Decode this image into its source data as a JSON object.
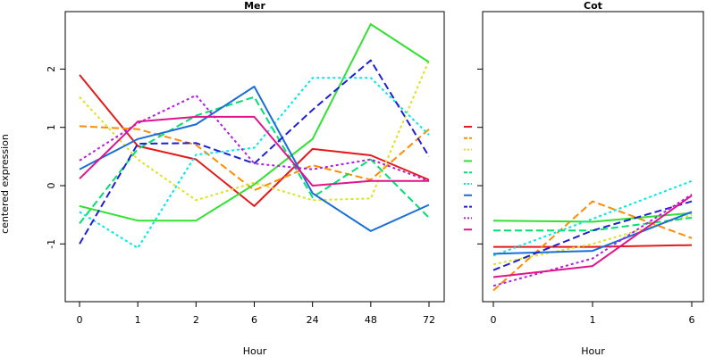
{
  "chart_data": [
    {
      "type": "line",
      "title": "Mer",
      "xlabel": "Hour",
      "ylabel": "centered expression",
      "categories": [
        "0",
        "1",
        "2",
        "6",
        "24",
        "48",
        "72"
      ],
      "yticks": [
        "-1",
        "0",
        "1",
        "2"
      ],
      "ylim": [
        -2,
        3
      ],
      "grid": false,
      "series": [
        {
          "color": "#e41a1c",
          "dash": "solid",
          "values": [
            1.9,
            0.68,
            0.45,
            -0.35,
            0.63,
            0.52,
            0.1
          ]
        },
        {
          "color": "#ff8c00",
          "dash": "dashed",
          "values": [
            1.02,
            0.97,
            0.7,
            -0.08,
            0.35,
            0.1,
            0.97
          ]
        },
        {
          "color": "#e0e020",
          "dash": "dotted",
          "values": [
            1.52,
            0.45,
            -0.25,
            0.05,
            -0.25,
            -0.22,
            2.15
          ]
        },
        {
          "color": "#33e033",
          "dash": "solid",
          "values": [
            -0.35,
            -0.6,
            -0.6,
            0.02,
            0.8,
            2.77,
            2.12
          ]
        },
        {
          "color": "#00e070",
          "dash": "dashed",
          "values": [
            -0.65,
            0.63,
            1.2,
            1.52,
            -0.2,
            0.45,
            -0.55
          ]
        },
        {
          "color": "#00e8e8",
          "dash": "dotted",
          "values": [
            -0.45,
            -1.07,
            0.53,
            0.65,
            1.85,
            1.85,
            0.87
          ]
        },
        {
          "color": "#1a6ed8",
          "dash": "solid",
          "values": [
            0.28,
            0.8,
            1.05,
            1.7,
            -0.13,
            -0.78,
            -0.33
          ]
        },
        {
          "color": "#2020d0",
          "dash": "dashed",
          "values": [
            -1.0,
            0.72,
            0.73,
            0.38,
            1.3,
            2.15,
            0.5
          ]
        },
        {
          "color": "#b020e0",
          "dash": "dotted",
          "values": [
            0.43,
            1.07,
            1.55,
            0.38,
            0.28,
            0.45,
            0.08
          ]
        },
        {
          "color": "#e0148c",
          "dash": "solid",
          "values": [
            0.12,
            1.1,
            1.18,
            1.18,
            0.0,
            0.08,
            0.08
          ]
        }
      ]
    },
    {
      "type": "line",
      "title": "Cot",
      "xlabel": "Hour",
      "ylabel": "",
      "categories": [
        "0",
        "1",
        "6"
      ],
      "ylim": [
        -2,
        3
      ],
      "grid": false,
      "series": [
        {
          "color": "#e41a1c",
          "dash": "solid",
          "values": [
            -1.05,
            -1.05,
            -1.02
          ]
        },
        {
          "color": "#ff8c00",
          "dash": "dashed",
          "values": [
            -1.8,
            -0.27,
            -0.9
          ]
        },
        {
          "color": "#e0e020",
          "dash": "dotted",
          "values": [
            -1.35,
            -1.0,
            -0.5
          ]
        },
        {
          "color": "#33e033",
          "dash": "solid",
          "values": [
            -0.6,
            -0.62,
            -0.47
          ]
        },
        {
          "color": "#00e070",
          "dash": "dashed",
          "values": [
            -0.77,
            -0.77,
            -0.55
          ]
        },
        {
          "color": "#00e8e8",
          "dash": "dotted",
          "values": [
            -1.2,
            -0.57,
            0.08
          ]
        },
        {
          "color": "#1a6ed8",
          "dash": "solid",
          "values": [
            -1.17,
            -1.12,
            -0.45
          ]
        },
        {
          "color": "#2020d0",
          "dash": "dashed",
          "values": [
            -1.45,
            -0.77,
            -0.27
          ]
        },
        {
          "color": "#b020e0",
          "dash": "dotted",
          "values": [
            -1.72,
            -1.25,
            -0.15
          ]
        },
        {
          "color": "#e0148c",
          "dash": "solid",
          "values": [
            -1.57,
            -1.38,
            -0.17
          ]
        }
      ]
    }
  ]
}
